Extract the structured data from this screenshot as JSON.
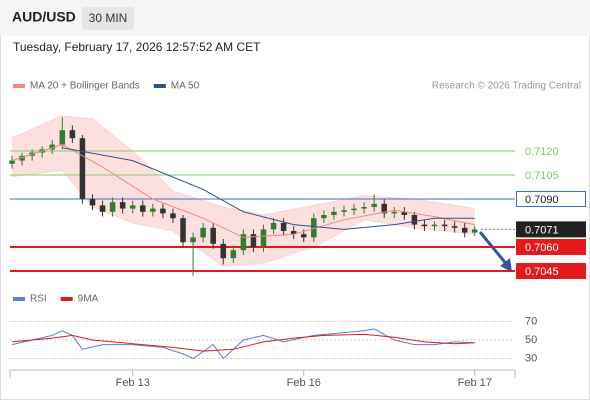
{
  "header": {
    "symbol": "AUD/USD",
    "interval": "30 MIN",
    "timestamp": "Tuesday, February 17, 2026 12:57:52 AM CET"
  },
  "chart_data": [
    {
      "type": "candlestick",
      "credit": "Research © 2026 Trading Central",
      "up_color": "#2e7d32",
      "down_color": "#333333",
      "x": [
        0,
        1,
        2,
        3,
        4,
        5,
        6,
        7,
        8,
        9,
        10,
        11,
        12,
        13,
        14,
        15,
        16,
        17,
        18,
        19,
        20,
        21,
        22,
        23,
        24,
        25,
        26,
        27,
        28,
        29,
        30,
        31,
        32,
        33,
        34,
        35,
        36,
        37,
        38,
        39,
        40,
        41,
        42,
        43,
        44,
        45,
        46
      ],
      "open": [
        0.7112,
        0.7114,
        0.7117,
        0.7119,
        0.7121,
        0.7124,
        0.7133,
        0.7128,
        0.709,
        0.7086,
        0.7082,
        0.7088,
        0.7084,
        0.7086,
        0.7082,
        0.7084,
        0.7081,
        0.7078,
        0.7063,
        0.7066,
        0.7072,
        0.7062,
        0.7053,
        0.7058,
        0.7068,
        0.706,
        0.7071,
        0.7075,
        0.707,
        0.7068,
        0.7066,
        0.7078,
        0.708,
        0.7082,
        0.7083,
        0.7084,
        0.7085,
        0.7087,
        0.7081,
        0.7082,
        0.708,
        0.7074,
        0.7073,
        0.7074,
        0.7073,
        0.7072,
        0.7069
      ],
      "high": [
        0.7117,
        0.7119,
        0.7121,
        0.7123,
        0.7127,
        0.7141,
        0.7136,
        0.713,
        0.7093,
        0.7089,
        0.7091,
        0.7091,
        0.7089,
        0.7089,
        0.7087,
        0.7087,
        0.7084,
        0.708,
        0.7069,
        0.7075,
        0.7075,
        0.7065,
        0.7061,
        0.7071,
        0.7071,
        0.7074,
        0.7078,
        0.7078,
        0.7073,
        0.7071,
        0.7081,
        0.7083,
        0.7085,
        0.7086,
        0.7087,
        0.7088,
        0.7093,
        0.709,
        0.7085,
        0.7085,
        0.7082,
        0.7077,
        0.7076,
        0.7077,
        0.7076,
        0.7075,
        0.7073
      ],
      "low": [
        0.7109,
        0.7111,
        0.7114,
        0.7116,
        0.7118,
        0.7121,
        0.7125,
        0.7087,
        0.7083,
        0.7079,
        0.7079,
        0.7081,
        0.7081,
        0.7079,
        0.7079,
        0.7078,
        0.7075,
        0.706,
        0.7042,
        0.7063,
        0.7059,
        0.7049,
        0.705,
        0.7055,
        0.7057,
        0.7057,
        0.7068,
        0.7067,
        0.7065,
        0.7063,
        0.7063,
        0.7075,
        0.7077,
        0.7079,
        0.708,
        0.7081,
        0.7082,
        0.7078,
        0.7078,
        0.7077,
        0.7071,
        0.707,
        0.707,
        0.707,
        0.7069,
        0.7066,
        0.7067
      ],
      "close": [
        0.7114,
        0.7117,
        0.7119,
        0.7121,
        0.7124,
        0.7133,
        0.7128,
        0.709,
        0.7086,
        0.7082,
        0.7088,
        0.7084,
        0.7086,
        0.7082,
        0.7084,
        0.7081,
        0.7078,
        0.7063,
        0.7066,
        0.7072,
        0.7062,
        0.7053,
        0.7058,
        0.7068,
        0.706,
        0.7071,
        0.7075,
        0.707,
        0.7068,
        0.7066,
        0.7078,
        0.708,
        0.7082,
        0.7083,
        0.7084,
        0.7085,
        0.7087,
        0.7081,
        0.7082,
        0.708,
        0.7074,
        0.7073,
        0.7074,
        0.7073,
        0.7072,
        0.7069,
        0.7071
      ],
      "xlim": [
        0,
        50
      ],
      "ylim": [
        0.7036,
        0.7152
      ],
      "bands": {
        "color": "#fbd3d3",
        "x": [
          0,
          5,
          8,
          12,
          16,
          21,
          25,
          30,
          35,
          40,
          46
        ],
        "upper": [
          0.7128,
          0.7142,
          0.714,
          0.712,
          0.7095,
          0.7085,
          0.708,
          0.7086,
          0.7092,
          0.709,
          0.7084
        ],
        "lower": [
          0.7104,
          0.7108,
          0.7085,
          0.7075,
          0.707,
          0.7048,
          0.705,
          0.706,
          0.7077,
          0.7072,
          0.7068
        ]
      },
      "series": [
        {
          "name": "MA 20 + Bollinger Bands",
          "color": "#f08a80",
          "x": [
            0,
            5,
            9,
            14,
            19,
            23,
            28,
            33,
            38,
            42,
            46
          ],
          "values": [
            0.7114,
            0.7124,
            0.711,
            0.709,
            0.7078,
            0.7066,
            0.7068,
            0.7077,
            0.7083,
            0.7079,
            0.7074
          ]
        },
        {
          "name": "MA 50",
          "color": "#2f4f8f",
          "x": [
            5,
            12,
            19,
            23,
            28,
            33,
            38,
            42,
            46
          ],
          "values": [
            0.7122,
            0.7114,
            0.7096,
            0.7082,
            0.7074,
            0.7071,
            0.7074,
            0.7078,
            0.7078
          ]
        }
      ],
      "levels": [
        {
          "value": 0.712,
          "label": "0.7120",
          "color": "#8bc86a",
          "style": "text"
        },
        {
          "value": 0.7105,
          "label": "0.7105",
          "color": "#8bc86a",
          "style": "text"
        },
        {
          "value": 0.709,
          "label": "0.7090",
          "color": "#3f6fd1",
          "style": "outline"
        },
        {
          "value": 0.7071,
          "label": "0.7071",
          "color": "#222222",
          "style": "current"
        },
        {
          "value": 0.706,
          "label": "0.7060",
          "color": "#e3191b",
          "style": "filled"
        },
        {
          "value": 0.7045,
          "label": "0.7045",
          "color": "#e3191b",
          "style": "filled"
        }
      ]
    },
    {
      "type": "line",
      "xlim": [
        0,
        50
      ],
      "ylim": [
        20,
        80
      ],
      "yticks": [
        30,
        50,
        70
      ],
      "xticks": [
        {
          "value": 12,
          "label": "Feb 13"
        },
        {
          "value": 29,
          "label": "Feb 16"
        },
        {
          "value": 46,
          "label": "Feb 17"
        }
      ],
      "series": [
        {
          "name": "RSI",
          "color": "#5b7fd6",
          "x": [
            0,
            2,
            4,
            5,
            6,
            7,
            9,
            12,
            15,
            17,
            18,
            20,
            21,
            23,
            25,
            27,
            30,
            33,
            35,
            36,
            38,
            40,
            42,
            44,
            46
          ],
          "values": [
            45,
            50,
            55,
            60,
            55,
            40,
            45,
            45,
            42,
            35,
            30,
            45,
            30,
            50,
            55,
            48,
            55,
            58,
            60,
            62,
            50,
            45,
            45,
            48,
            47
          ]
        },
        {
          "name": "9MA",
          "color": "#e3191b",
          "x": [
            0,
            4,
            6,
            8,
            12,
            16,
            19,
            22,
            25,
            28,
            31,
            35,
            38,
            41,
            44,
            46
          ],
          "values": [
            48,
            52,
            55,
            50,
            46,
            42,
            38,
            40,
            48,
            52,
            55,
            56,
            53,
            48,
            46,
            47
          ]
        }
      ]
    }
  ]
}
